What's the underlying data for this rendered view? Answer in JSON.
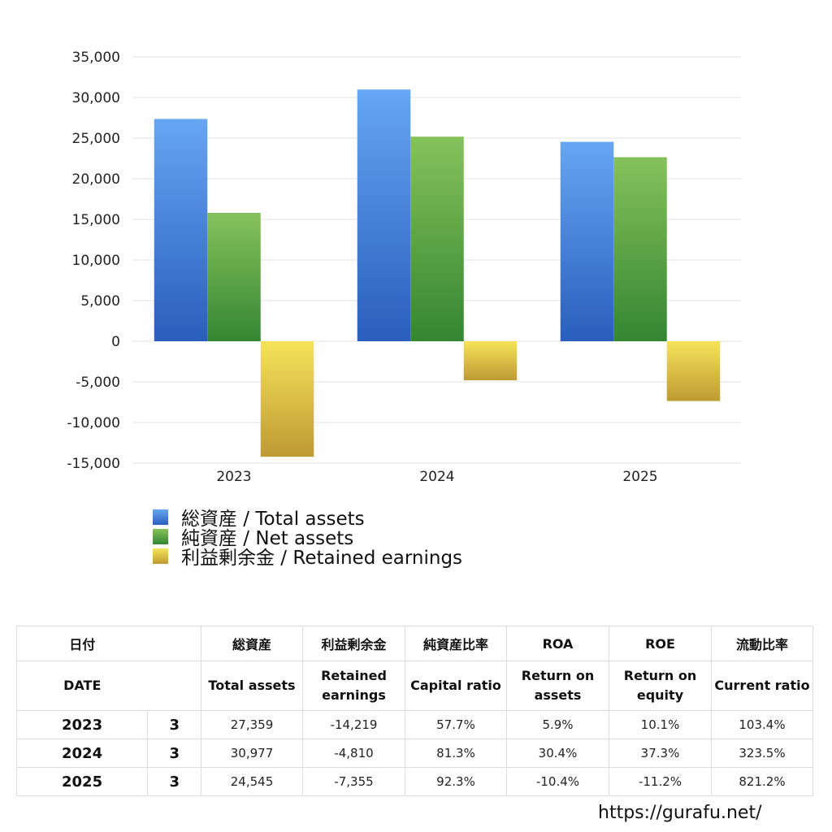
{
  "chart_data": {
    "type": "bar",
    "categories": [
      "2023",
      "2024",
      "2025"
    ],
    "series": [
      {
        "name": "総資産 / Total assets",
        "values": [
          27359,
          30977,
          24545
        ],
        "color_top": "#66a6f2",
        "color_bottom": "#2a5ebd"
      },
      {
        "name": "純資産 / Net assets",
        "values": [
          15800,
          25180,
          22650
        ],
        "color_top": "#86c25b",
        "color_bottom": "#348632"
      },
      {
        "name": "利益剰余金 / Retained earnings",
        "values": [
          -14219,
          -4810,
          -7355
        ],
        "color_top": "#f6e35a",
        "color_bottom": "#bd9a33"
      }
    ],
    "y_ticks": [
      "35,000",
      "30,000",
      "25,000",
      "20,000",
      "15,000",
      "10,000",
      "5,000",
      "0",
      "-5,000",
      "-10,000",
      "-15,000"
    ],
    "ylim": [
      -15000,
      35000
    ],
    "grid": true,
    "legend_position": "bottom-left"
  },
  "table": {
    "header_jp": [
      "日付",
      "",
      "総資産",
      "利益剰余金",
      "純資産比率",
      "ROA",
      "ROE",
      "流動比率"
    ],
    "header_en": [
      "DATE",
      "",
      "Total assets",
      "Retained\nearnings",
      "Capital ratio",
      "Return on\nassets",
      "Return on\nequity",
      "Current ratio"
    ],
    "rows": [
      {
        "year": "2023",
        "month": "3",
        "total_assets": "27,359",
        "retained": "-14,219",
        "capital_ratio": "57.7%",
        "roa": "5.9%",
        "roe": "10.1%",
        "current_ratio": "103.4%"
      },
      {
        "year": "2024",
        "month": "3",
        "total_assets": "30,977",
        "retained": "-4,810",
        "capital_ratio": "81.3%",
        "roa": "30.4%",
        "roe": "37.3%",
        "current_ratio": "323.5%"
      },
      {
        "year": "2025",
        "month": "3",
        "total_assets": "24,545",
        "retained": "-7,355",
        "capital_ratio": "92.3%",
        "roa": "-10.4%",
        "roe": "-11.2%",
        "current_ratio": "821.2%"
      }
    ]
  },
  "site_url": "https://gurafu.net/"
}
